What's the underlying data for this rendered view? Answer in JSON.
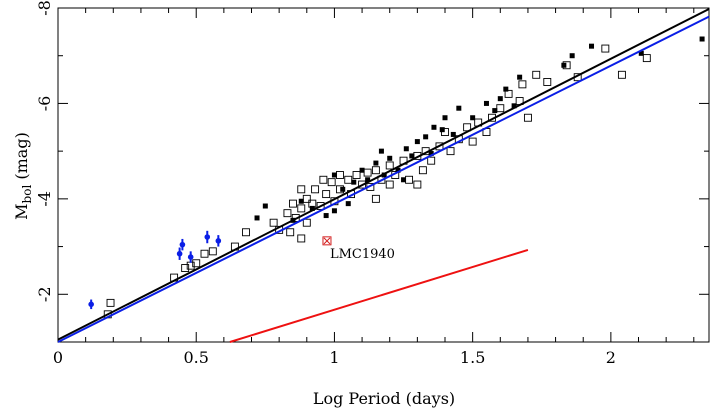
{
  "chart_data": {
    "type": "scatter",
    "xlabel": "Log Period (days)",
    "ylabel": {
      "main": "M",
      "sub": "bol",
      "rest": " (mag)"
    },
    "xlim": [
      0,
      2.355
    ],
    "ylim": [
      -1,
      -8
    ],
    "xticks": [
      0,
      0.5,
      1,
      1.5,
      2
    ],
    "yticks": [
      -2,
      -4,
      -6,
      -8
    ],
    "xminorticks": [
      0.1,
      0.2,
      0.3,
      0.4,
      0.6,
      0.7,
      0.8,
      0.9,
      1.1,
      1.2,
      1.3,
      1.4,
      1.6,
      1.7,
      1.8,
      1.9,
      2.1,
      2.2,
      2.3
    ],
    "yminorticks": [
      -3,
      -5,
      -7
    ],
    "series": [
      {
        "marker": "open-square",
        "color": "#000000",
        "x": [
          0.18,
          0.19,
          0.42,
          0.46,
          0.48,
          0.5,
          0.53,
          0.56,
          0.64,
          0.68,
          0.78,
          0.8,
          0.83,
          0.84,
          0.86,
          0.88,
          0.88,
          0.9,
          0.9,
          0.88,
          0.92,
          0.93,
          0.95,
          0.97,
          0.99,
          1.0,
          1.02,
          1.05,
          1.06,
          1.08,
          1.1,
          1.12,
          1.13,
          1.15,
          1.17,
          1.2,
          1.22,
          1.25,
          1.27,
          1.3,
          1.32,
          1.33,
          1.35,
          1.38,
          1.4,
          1.42,
          1.45,
          1.48,
          1.5,
          1.52,
          1.55,
          1.57,
          1.6,
          1.63,
          1.67,
          1.68,
          1.73,
          1.7,
          1.77,
          1.84,
          1.88,
          1.98,
          2.04,
          2.13,
          1.3,
          1.15,
          0.85,
          1.02,
          0.96,
          1.2
        ],
        "y": [
          -1.58,
          -1.82,
          -2.35,
          -2.55,
          -2.6,
          -2.65,
          -2.85,
          -2.9,
          -3.0,
          -3.3,
          -3.5,
          -3.35,
          -3.7,
          -3.3,
          -3.6,
          -3.8,
          -4.2,
          -4.0,
          -3.5,
          -3.17,
          -3.9,
          -4.2,
          -3.85,
          -4.1,
          -4.35,
          -3.95,
          -4.2,
          -4.4,
          -4.1,
          -4.5,
          -4.3,
          -4.55,
          -4.25,
          -4.6,
          -4.4,
          -4.7,
          -4.5,
          -4.8,
          -4.4,
          -4.9,
          -4.6,
          -5.0,
          -4.8,
          -5.1,
          -5.4,
          -5.0,
          -5.25,
          -5.5,
          -5.2,
          -5.6,
          -5.4,
          -5.7,
          -5.9,
          -6.2,
          -6.05,
          -6.4,
          -6.6,
          -5.7,
          -6.45,
          -6.8,
          -6.55,
          -7.15,
          -6.6,
          -6.95,
          -4.3,
          -4.0,
          -3.9,
          -4.5,
          -4.4,
          -4.3
        ]
      },
      {
        "marker": "filled-square",
        "color": "#000000",
        "x": [
          0.75,
          0.72,
          0.88,
          0.92,
          0.97,
          1.0,
          1.0,
          1.03,
          1.05,
          1.07,
          1.1,
          1.12,
          1.15,
          1.18,
          1.2,
          1.23,
          1.26,
          1.28,
          1.3,
          1.33,
          1.35,
          1.36,
          1.39,
          1.4,
          1.43,
          1.45,
          1.5,
          1.55,
          1.58,
          1.6,
          1.62,
          1.65,
          1.67,
          1.83,
          1.86,
          1.93,
          2.11,
          2.33,
          0.85,
          1.17,
          1.25
        ],
        "y": [
          -3.85,
          -3.6,
          -3.95,
          -3.8,
          -3.65,
          -3.75,
          -4.5,
          -4.2,
          -3.9,
          -4.35,
          -4.6,
          -4.4,
          -4.75,
          -4.5,
          -4.85,
          -4.6,
          -5.05,
          -4.9,
          -5.2,
          -5.3,
          -4.95,
          -5.5,
          -5.45,
          -5.7,
          -5.35,
          -5.9,
          -5.7,
          -6.0,
          -5.85,
          -6.1,
          -6.3,
          -5.95,
          -6.55,
          -6.8,
          -7.0,
          -7.2,
          -7.05,
          -7.35,
          -3.55,
          -5.0,
          -4.4
        ]
      },
      {
        "marker": "dot-errorbar",
        "color": "#0a1ee6",
        "x": [
          0.12,
          0.44,
          0.45,
          0.48,
          0.54,
          0.58
        ],
        "y": [
          -1.79,
          -2.85,
          -3.04,
          -2.78,
          -3.2,
          -3.12
        ],
        "yerr": [
          0.1,
          0.13,
          0.12,
          0.12,
          0.13,
          0.12
        ]
      },
      {
        "marker": "line",
        "color": "#000000",
        "x": [
          0,
          2.355
        ],
        "y": [
          -1.05,
          -7.98
        ]
      },
      {
        "marker": "line",
        "color": "#0a1ee6",
        "x": [
          0,
          2.355
        ],
        "y": [
          -1.0,
          -7.82
        ]
      },
      {
        "marker": "line",
        "color": "#ee1111",
        "x": [
          0.622,
          1.7
        ],
        "y": [
          -1.0,
          -2.93
        ]
      }
    ],
    "annotation": {
      "text": "LMC1940",
      "x": 0.973,
      "y": -3.12,
      "color": "#d42020"
    }
  }
}
